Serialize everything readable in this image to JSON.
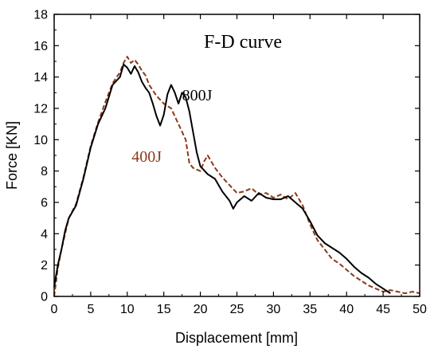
{
  "chart_data": {
    "type": "line",
    "title": "F-D curve",
    "xlabel": "Displacement [mm]",
    "ylabel": "Force [KN]",
    "xlim": [
      0,
      50
    ],
    "ylim": [
      0,
      18
    ],
    "xticks": [
      "0",
      "5",
      "10",
      "15",
      "20",
      "25",
      "30",
      "35",
      "40",
      "45",
      "50"
    ],
    "yticks": [
      "0",
      "2",
      "4",
      "6",
      "8",
      "10",
      "12",
      "14",
      "16",
      "18"
    ],
    "grid": false,
    "series": [
      {
        "name": "800J",
        "color": "#000000",
        "style": "solid",
        "points": [
          [
            0,
            0.6
          ],
          [
            0.5,
            2.0
          ],
          [
            1,
            3.0
          ],
          [
            1.5,
            4.2
          ],
          [
            2,
            5.0
          ],
          [
            3,
            5.8
          ],
          [
            4,
            7.5
          ],
          [
            5,
            9.5
          ],
          [
            6,
            11.0
          ],
          [
            7,
            12.0
          ],
          [
            8,
            13.5
          ],
          [
            9,
            14.0
          ],
          [
            9.5,
            14.8
          ],
          [
            10,
            14.6
          ],
          [
            10.5,
            14.2
          ],
          [
            11,
            14.7
          ],
          [
            11.5,
            14.3
          ],
          [
            12,
            13.7
          ],
          [
            12.5,
            13.3
          ],
          [
            13,
            13.0
          ],
          [
            13.5,
            12.3
          ],
          [
            14,
            11.5
          ],
          [
            14.5,
            10.9
          ],
          [
            15,
            11.6
          ],
          [
            15.5,
            12.9
          ],
          [
            16,
            13.5
          ],
          [
            16.5,
            13.0
          ],
          [
            17,
            12.3
          ],
          [
            17.5,
            13.0
          ],
          [
            18,
            12.7
          ],
          [
            18.5,
            11.8
          ],
          [
            19,
            10.5
          ],
          [
            19.5,
            9.2
          ],
          [
            20,
            8.3
          ],
          [
            21,
            7.8
          ],
          [
            22,
            7.5
          ],
          [
            23,
            6.7
          ],
          [
            24,
            6.1
          ],
          [
            24.5,
            5.6
          ],
          [
            25,
            6.0
          ],
          [
            26,
            6.4
          ],
          [
            27,
            6.1
          ],
          [
            28,
            6.6
          ],
          [
            29,
            6.3
          ],
          [
            30,
            6.2
          ],
          [
            31,
            6.2
          ],
          [
            32,
            6.4
          ],
          [
            33,
            6.0
          ],
          [
            34,
            5.6
          ],
          [
            35,
            4.8
          ],
          [
            36,
            3.9
          ],
          [
            37,
            3.4
          ],
          [
            38,
            3.1
          ],
          [
            39,
            2.8
          ],
          [
            40,
            2.4
          ],
          [
            41,
            1.9
          ],
          [
            42,
            1.5
          ],
          [
            43,
            1.2
          ],
          [
            44,
            0.8
          ],
          [
            45,
            0.5
          ],
          [
            46,
            0.2
          ]
        ]
      },
      {
        "name": "400J",
        "color": "#8b3a1a",
        "style": "dashed",
        "points": [
          [
            0,
            0.0
          ],
          [
            0.5,
            1.8
          ],
          [
            1,
            3.0
          ],
          [
            1.5,
            4.0
          ],
          [
            2,
            5.0
          ],
          [
            3,
            5.9
          ],
          [
            4,
            7.6
          ],
          [
            5,
            9.6
          ],
          [
            6,
            11.1
          ],
          [
            7,
            12.4
          ],
          [
            8,
            13.6
          ],
          [
            9,
            14.3
          ],
          [
            9.5,
            14.9
          ],
          [
            10,
            15.3
          ],
          [
            10.5,
            14.9
          ],
          [
            11,
            15.1
          ],
          [
            11.5,
            14.8
          ],
          [
            12,
            14.4
          ],
          [
            12.5,
            14.1
          ],
          [
            13,
            13.5
          ],
          [
            14,
            12.8
          ],
          [
            15,
            12.3
          ],
          [
            16,
            12.0
          ],
          [
            17,
            11.0
          ],
          [
            18,
            10.0
          ],
          [
            18.5,
            8.5
          ],
          [
            19,
            8.2
          ],
          [
            20,
            8.0
          ],
          [
            20.5,
            8.6
          ],
          [
            21,
            9.0
          ],
          [
            22,
            8.2
          ],
          [
            23,
            7.6
          ],
          [
            24,
            7.1
          ],
          [
            25,
            6.6
          ],
          [
            26,
            6.7
          ],
          [
            27,
            6.9
          ],
          [
            28,
            6.5
          ],
          [
            29,
            6.6
          ],
          [
            30,
            6.3
          ],
          [
            31,
            6.5
          ],
          [
            32,
            6.2
          ],
          [
            33,
            6.6
          ],
          [
            34,
            5.8
          ],
          [
            35,
            4.6
          ],
          [
            36,
            3.6
          ],
          [
            37,
            3.0
          ],
          [
            38,
            2.4
          ],
          [
            39,
            2.1
          ],
          [
            40,
            1.7
          ],
          [
            41,
            1.3
          ],
          [
            42,
            1.0
          ],
          [
            43,
            0.7
          ],
          [
            44,
            0.5
          ],
          [
            45,
            0.3
          ],
          [
            46,
            0.4
          ],
          [
            47,
            0.3
          ],
          [
            48,
            0.2
          ],
          [
            49,
            0.3
          ],
          [
            50,
            0.2
          ]
        ]
      }
    ],
    "annotations": [
      {
        "text": "800J",
        "x": 17.5,
        "y": 12.5,
        "color": "#000000"
      },
      {
        "text": "400J",
        "x": 10.6,
        "y": 8.6,
        "color": "#8b3a1a"
      }
    ]
  }
}
